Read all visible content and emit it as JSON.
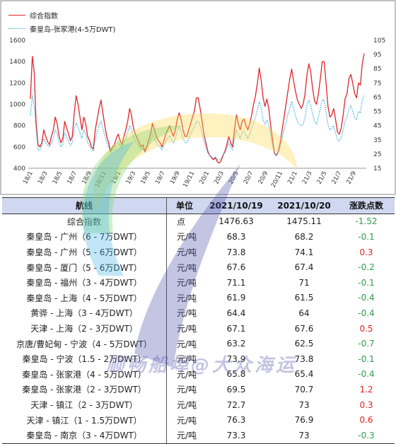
{
  "chart_data": {
    "type": "line",
    "legend": [
      "综合指数",
      "秦皇岛-张家港(4-5万DWT)"
    ],
    "x_ticks": [
      "18/1",
      "18/3",
      "18/5",
      "18/7",
      "18/9",
      "18/11",
      "19/1",
      "19/3",
      "19/5",
      "19/7",
      "19/9",
      "19/11",
      "20/1",
      "20/3",
      "20/5",
      "20/7",
      "20/9",
      "20/11",
      "21/1",
      "21/3",
      "21/5",
      "21/7",
      "21/9"
    ],
    "y_left": {
      "ticks": [
        400,
        600,
        800,
        1000,
        1200,
        1400,
        1600
      ],
      "range": [
        400,
        1600
      ]
    },
    "y_right": {
      "ticks": [
        15,
        25,
        35,
        45,
        55,
        65,
        75,
        85,
        95,
        105
      ],
      "range": [
        15,
        105
      ]
    },
    "series": [
      {
        "name": "综合指数",
        "axis": "left",
        "color": "#e1262d",
        "style": "solid",
        "values": [
          1050,
          1450,
          1300,
          820,
          620,
          600,
          640,
          760,
          700,
          650,
          620,
          700,
          760,
          880,
          820,
          700,
          640,
          680,
          840,
          780,
          720,
          660,
          700,
          920,
          1080,
          1000,
          880,
          760,
          880,
          820,
          700,
          660,
          600,
          580,
          760,
          860,
          960,
          1040,
          920,
          800,
          700,
          640,
          560,
          600,
          620,
          680,
          720,
          660,
          620,
          700,
          760,
          840,
          960,
          900,
          780,
          720,
          680,
          640,
          600,
          620,
          560,
          600,
          660,
          720,
          820,
          760,
          700,
          660,
          640,
          600,
          660,
          720,
          760,
          800,
          740,
          700,
          760,
          860,
          920,
          860,
          760,
          700,
          700,
          760,
          820,
          880,
          940,
          1060,
          1060,
          960,
          840,
          720,
          640,
          560,
          520,
          500,
          480,
          500,
          460,
          450,
          470,
          520,
          560,
          620,
          700,
          640,
          600,
          760,
          900,
          820,
          760,
          840,
          860,
          800,
          760,
          820,
          900,
          1000,
          1080,
          1200,
          1340,
          1220,
          1060,
          980,
          1050,
          960,
          800,
          660,
          540,
          520,
          560,
          640,
          760,
          880,
          1000,
          1120,
          1240,
          1330,
          1220,
          1120,
          1040,
          1000,
          960,
          1000,
          1100,
          1280,
          1380,
          1300,
          1140,
          1030,
          1000,
          1100,
          1240,
          1400,
          1400,
          1200,
          980,
          880,
          900,
          960,
          860,
          740,
          720,
          780,
          900,
          1050,
          1100,
          1240,
          1280,
          1200,
          1100,
          1060,
          1200,
          1180,
          1380,
          1476
        ]
      },
      {
        "name": "秦皇岛-张家港(4-5万DWT)",
        "axis": "right",
        "color": "#2aa6d6",
        "style": "dotted",
        "values": [
          52,
          66,
          58,
          42,
          28,
          28,
          31,
          36,
          33,
          31,
          30,
          32,
          36,
          42,
          39,
          33,
          30,
          32,
          40,
          37,
          34,
          31,
          33,
          42,
          47,
          44,
          40,
          36,
          42,
          39,
          33,
          31,
          28,
          27,
          35,
          41,
          45,
          48,
          43,
          38,
          33,
          30,
          26,
          28,
          29,
          32,
          34,
          31,
          29,
          33,
          36,
          40,
          45,
          42,
          37,
          34,
          32,
          30,
          28,
          29,
          26,
          28,
          31,
          34,
          39,
          36,
          33,
          31,
          30,
          28,
          31,
          34,
          36,
          38,
          35,
          33,
          36,
          41,
          44,
          41,
          36,
          33,
          33,
          36,
          39,
          42,
          44,
          48,
          48,
          45,
          40,
          34,
          30,
          26,
          24,
          23,
          22,
          23,
          21,
          21,
          22,
          24,
          26,
          29,
          33,
          30,
          28,
          36,
          42,
          39,
          36,
          40,
          41,
          38,
          36,
          39,
          43,
          47,
          51,
          56,
          62,
          57,
          49,
          46,
          49,
          45,
          38,
          31,
          26,
          24,
          26,
          30,
          36,
          42,
          47,
          53,
          57,
          62,
          57,
          52,
          48,
          46,
          45,
          46,
          51,
          59,
          63,
          59,
          53,
          48,
          46,
          51,
          57,
          63,
          63,
          55,
          46,
          42,
          43,
          45,
          40,
          35,
          34,
          37,
          42,
          48,
          51,
          57,
          59,
          55,
          51,
          49,
          55,
          54,
          63,
          66
        ]
      }
    ]
  },
  "table": {
    "headers": {
      "route": "航线",
      "unit": "单位",
      "date1": "2021/10/19",
      "date2": "2021/10/20",
      "change": "涨跌点数"
    },
    "rows": [
      {
        "route": "综合指数",
        "unit": "点",
        "d1": "1476.63",
        "d2": "1475.11",
        "chg": "-1.52",
        "dir": "neg"
      },
      {
        "route": "秦皇岛 - 广州（6 - 7万DWT）",
        "unit": "元/吨",
        "d1": "68.3",
        "d2": "68.2",
        "chg": "-0.1",
        "dir": "neg"
      },
      {
        "route": "秦皇岛 - 广州（5 - 6万DWT）",
        "unit": "元/吨",
        "d1": "73.8",
        "d2": "74.1",
        "chg": "0.3",
        "dir": "pos"
      },
      {
        "route": "秦皇岛 - 厦门（5 - 6万DWT）",
        "unit": "元/吨",
        "d1": "67.6",
        "d2": "67.4",
        "chg": "-0.2",
        "dir": "neg"
      },
      {
        "route": "秦皇岛 - 福州（3 - 4万DWT）",
        "unit": "元/吨",
        "d1": "71.1",
        "d2": "71",
        "chg": "-0.1",
        "dir": "neg"
      },
      {
        "route": "秦皇岛 - 上海（4 - 5万DWT）",
        "unit": "元/吨",
        "d1": "61.9",
        "d2": "61.5",
        "chg": "-0.4",
        "dir": "neg"
      },
      {
        "route": "黄骅 - 上海（3 - 4万DWT）",
        "unit": "元/吨",
        "d1": "64.4",
        "d2": "64",
        "chg": "-0.4",
        "dir": "neg"
      },
      {
        "route": "天津 - 上海（2 - 3万DWT）",
        "unit": "元/吨",
        "d1": "67.1",
        "d2": "67.6",
        "chg": "0.5",
        "dir": "pos"
      },
      {
        "route": "京唐/曹妃甸 - 宁波（4 - 5万DWT）",
        "unit": "元/吨",
        "d1": "63.2",
        "d2": "62.5",
        "chg": "-0.7",
        "dir": "neg"
      },
      {
        "route": "秦皇岛 - 宁波（1.5 - 2万DWT）",
        "unit": "元/吨",
        "d1": "73.9",
        "d2": "73.8",
        "chg": "-0.1",
        "dir": "neg"
      },
      {
        "route": "秦皇岛 - 张家港（4 - 5万DWT）",
        "unit": "元/吨",
        "d1": "65.8",
        "d2": "65.4",
        "chg": "-0.4",
        "dir": "neg"
      },
      {
        "route": "秦皇岛 - 张家港（2 - 3万DWT）",
        "unit": "元/吨",
        "d1": "69.5",
        "d2": "70.7",
        "chg": "1.2",
        "dir": "pos"
      },
      {
        "route": "天津 - 镇江（2 - 3万DWT）",
        "unit": "元/吨",
        "d1": "72.7",
        "d2": "73",
        "chg": "0.3",
        "dir": "pos"
      },
      {
        "route": "天津 - 镇江（1 - 1.5万DWT）",
        "unit": "元/吨",
        "d1": "76.3",
        "d2": "76.9",
        "chg": "0.6",
        "dir": "pos"
      },
      {
        "route": "秦皇岛 - 南京（3 - 4万DWT）",
        "unit": "元/吨",
        "d1": "73.3",
        "d2": "73",
        "chg": "-0.3",
        "dir": "neg"
      }
    ]
  },
  "watermark": {
    "text": "顺畅船埠@大众海运"
  }
}
